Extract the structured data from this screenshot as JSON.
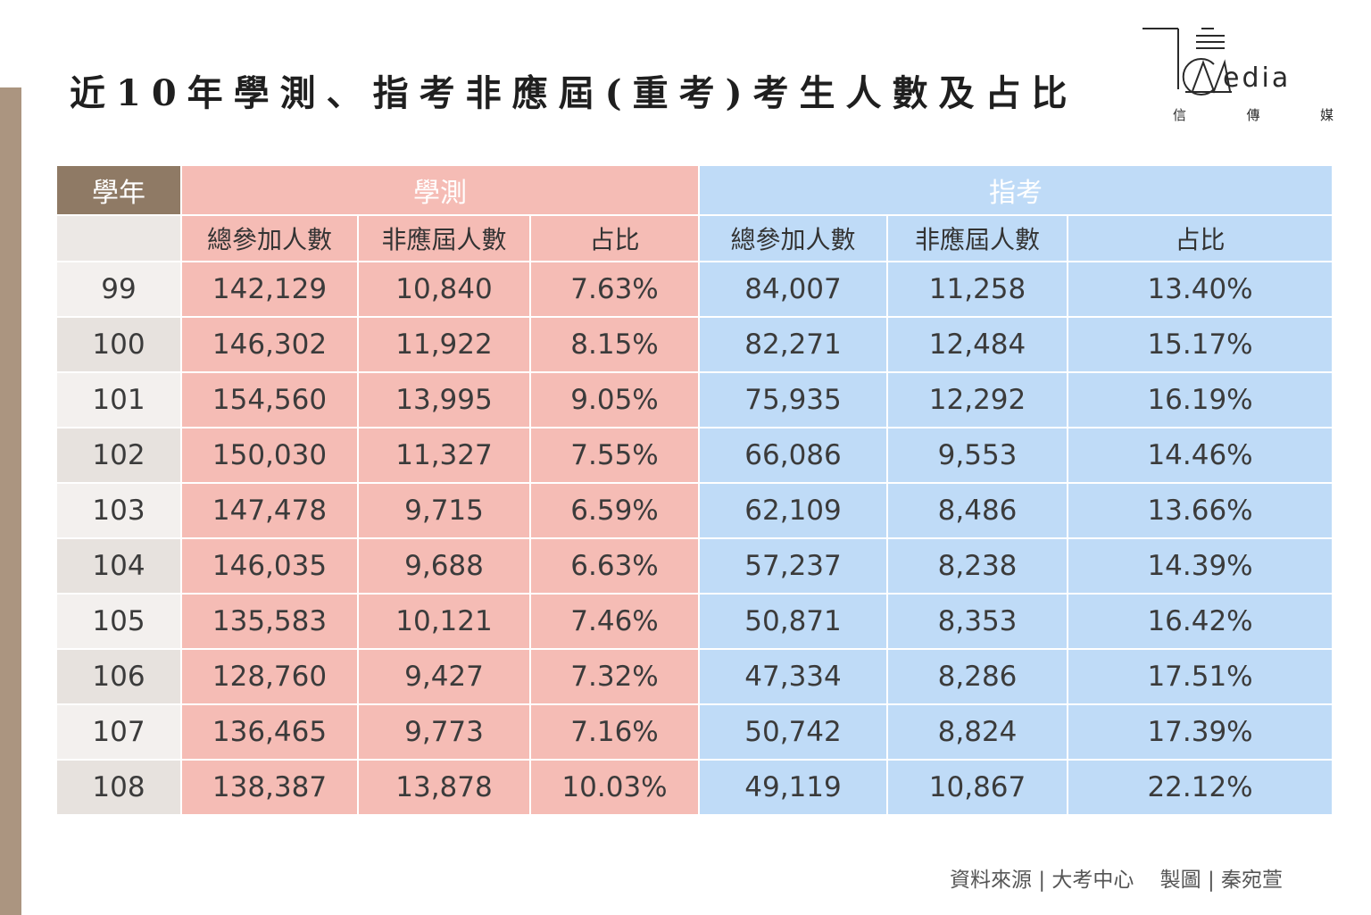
{
  "title": "近10年學測、指考非應屆(重考)考生人數及占比",
  "logo": {
    "word": "edia",
    "sub": [
      "信",
      "傳",
      "媒"
    ]
  },
  "colors": {
    "side_bar": "#ab9580",
    "year_header": "#8f7a65",
    "gsat": "#f5bcb5",
    "ast": "#bfdbf7"
  },
  "footer": {
    "source_label": "資料來源",
    "source": "大考中心",
    "maker_label": "製圖",
    "maker": "秦宛萱",
    "separator": "|"
  },
  "chart_data": {
    "type": "table",
    "group_headers": [
      "學年",
      "學測",
      "指考"
    ],
    "columns": [
      "總參加人數",
      "非應屆人數",
      "占比",
      "總參加人數",
      "非應屆人數",
      "占比"
    ],
    "rows": [
      {
        "year": "99",
        "cells": [
          "142,129",
          "10,840",
          "7.63%",
          "84,007",
          "11,258",
          "13.40%"
        ]
      },
      {
        "year": "100",
        "cells": [
          "146,302",
          "11,922",
          "8.15%",
          "82,271",
          "12,484",
          "15.17%"
        ]
      },
      {
        "year": "101",
        "cells": [
          "154,560",
          "13,995",
          "9.05%",
          "75,935",
          "12,292",
          "16.19%"
        ]
      },
      {
        "year": "102",
        "cells": [
          "150,030",
          "11,327",
          "7.55%",
          "66,086",
          "9,553",
          "14.46%"
        ]
      },
      {
        "year": "103",
        "cells": [
          "147,478",
          "9,715",
          "6.59%",
          "62,109",
          "8,486",
          "13.66%"
        ]
      },
      {
        "year": "104",
        "cells": [
          "146,035",
          "9,688",
          "6.63%",
          "57,237",
          "8,238",
          "14.39%"
        ]
      },
      {
        "year": "105",
        "cells": [
          "135,583",
          "10,121",
          "7.46%",
          "50,871",
          "8,353",
          "16.42%"
        ]
      },
      {
        "year": "106",
        "cells": [
          "128,760",
          "9,427",
          "7.32%",
          "47,334",
          "8,286",
          "17.51%"
        ]
      },
      {
        "year": "107",
        "cells": [
          "136,465",
          "9,773",
          "7.16%",
          "50,742",
          "8,824",
          "17.39%"
        ]
      },
      {
        "year": "108",
        "cells": [
          "138,387",
          "13,878",
          "10.03%",
          "49,119",
          "10,867",
          "22.12%"
        ]
      }
    ]
  }
}
